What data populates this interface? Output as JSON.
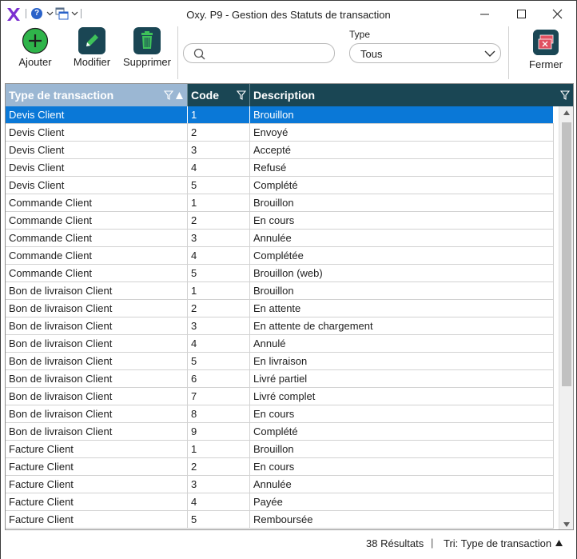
{
  "window": {
    "title": "Oxy. P9 - Gestion des Statuts de transaction",
    "controls": [
      "minimize-icon",
      "maximize-icon",
      "close-icon"
    ]
  },
  "quick_access": {
    "help_glyph": "?",
    "icons": [
      "oxy-logo-icon",
      "help-icon",
      "windows-icon"
    ]
  },
  "toolbar": {
    "add_label": "Ajouter",
    "edit_label": "Modifier",
    "delete_label": "Supprimer",
    "close_label": "Fermer",
    "search_value": "",
    "type_label": "Type",
    "type_value": "Tous",
    "colors": {
      "add": "#2fb44a",
      "edit": "#1a4654",
      "delete": "#1a4654",
      "close_accent": "#e05060"
    }
  },
  "grid": {
    "columns": [
      "Type de transaction",
      "Code",
      "Description"
    ],
    "header_color": "#1a4654",
    "sorted_header_color": "#9bb7d3",
    "selection_color": "#0a78d7",
    "selected_row": 0,
    "rows": [
      [
        "Devis Client",
        "1",
        "Brouillon"
      ],
      [
        "Devis Client",
        "2",
        "Envoyé"
      ],
      [
        "Devis Client",
        "3",
        "Accepté"
      ],
      [
        "Devis Client",
        "4",
        "Refusé"
      ],
      [
        "Devis Client",
        "5",
        "Complété"
      ],
      [
        "Commande Client",
        "1",
        "Brouillon"
      ],
      [
        "Commande Client",
        "2",
        "En cours"
      ],
      [
        "Commande Client",
        "3",
        "Annulée"
      ],
      [
        "Commande Client",
        "4",
        "Complétée"
      ],
      [
        "Commande Client",
        "5",
        "Brouillon (web)"
      ],
      [
        "Bon de livraison Client",
        "1",
        "Brouillon"
      ],
      [
        "Bon de livraison Client",
        "2",
        "En attente"
      ],
      [
        "Bon de livraison Client",
        "3",
        "En attente de chargement"
      ],
      [
        "Bon de livraison Client",
        "4",
        "Annulé"
      ],
      [
        "Bon de livraison Client",
        "5",
        "En livraison"
      ],
      [
        "Bon de livraison Client",
        "6",
        "Livré partiel"
      ],
      [
        "Bon de livraison Client",
        "7",
        "Livré complet"
      ],
      [
        "Bon de livraison Client",
        "8",
        "En cours"
      ],
      [
        "Bon de livraison Client",
        "9",
        "Complété"
      ],
      [
        "Facture Client",
        "1",
        "Brouillon"
      ],
      [
        "Facture Client",
        "2",
        "En cours"
      ],
      [
        "Facture Client",
        "3",
        "Annulée"
      ],
      [
        "Facture Client",
        "4",
        "Payée"
      ],
      [
        "Facture Client",
        "5",
        "Remboursée"
      ]
    ]
  },
  "status": {
    "count": "38 Résultats",
    "separator": "|",
    "sort": "Tri: Type de transaction"
  }
}
